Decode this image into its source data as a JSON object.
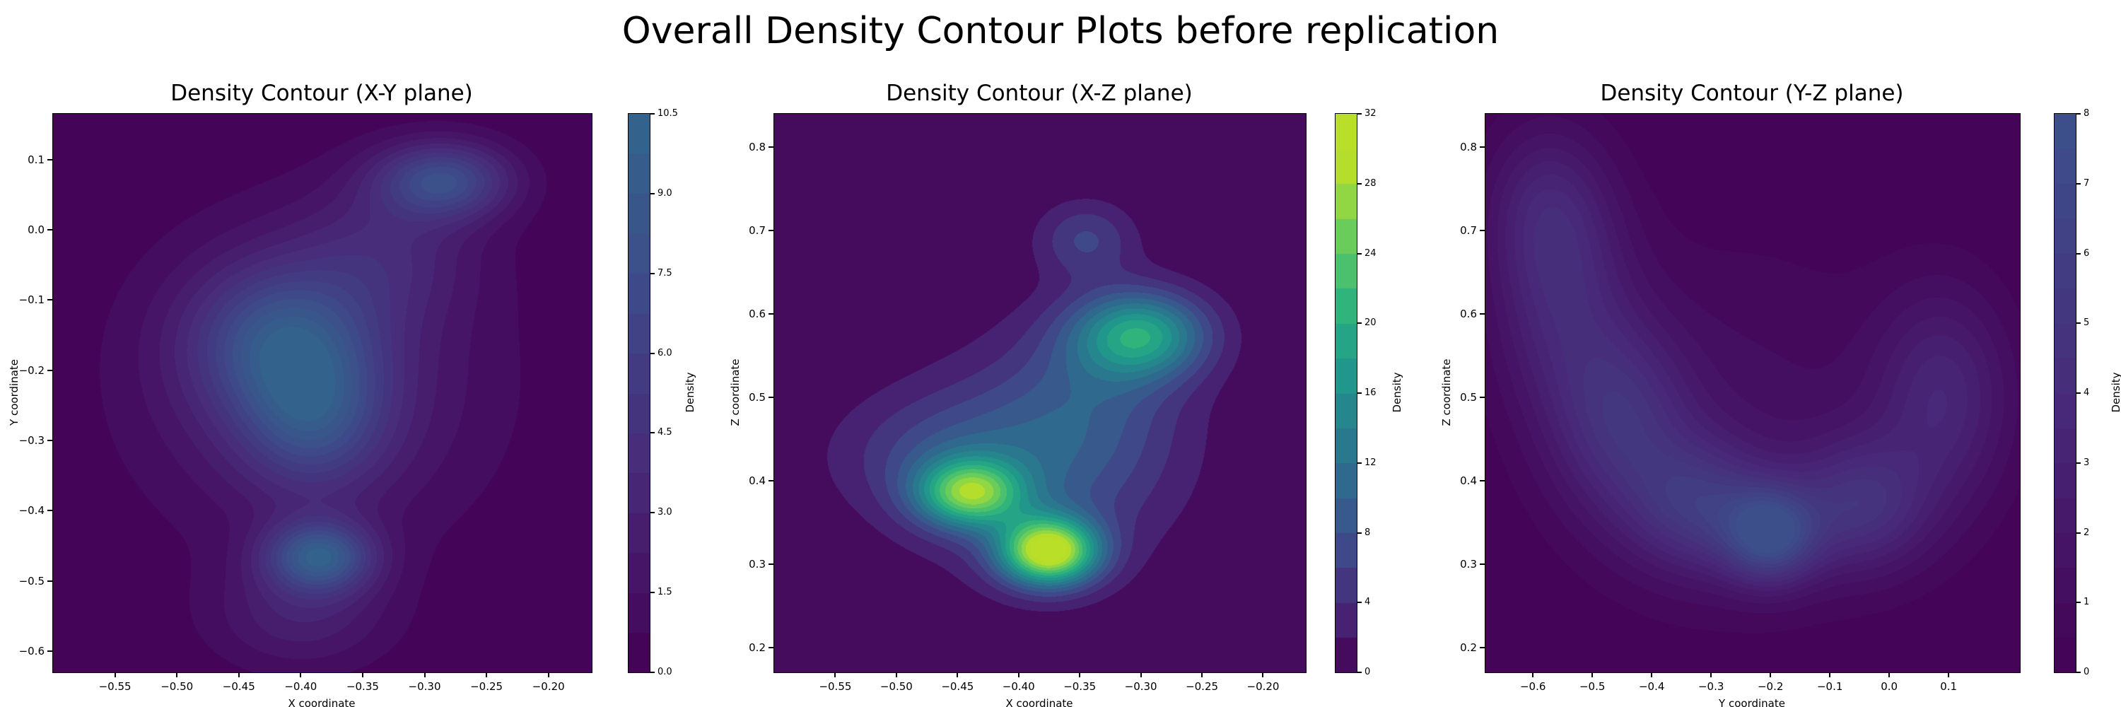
{
  "figure": {
    "title": "Overall Density Contour Plots before replication",
    "background_color": "#ffffff",
    "colormap": "viridis",
    "shared_color_scale_max": 36
  },
  "chart_data": [
    {
      "type": "contour",
      "plane": "X-Y",
      "title": "Density Contour (X-Y plane)",
      "xlabel": "X coordinate",
      "ylabel": "Y coordinate",
      "colorbar_label": "Density",
      "colormap": "viridis",
      "grid": false,
      "xlim": [
        -0.6,
        -0.165
      ],
      "ylim": [
        -0.63,
        0.165
      ],
      "max_density": 10.5,
      "level_step": 0.75,
      "xticks": [
        {
          "v": -0.55,
          "label": "−0.55"
        },
        {
          "v": -0.5,
          "label": "−0.50"
        },
        {
          "v": -0.45,
          "label": "−0.45"
        },
        {
          "v": -0.4,
          "label": "−0.40"
        },
        {
          "v": -0.35,
          "label": "−0.35"
        },
        {
          "v": -0.3,
          "label": "−0.30"
        },
        {
          "v": -0.25,
          "label": "−0.25"
        },
        {
          "v": -0.2,
          "label": "−0.20"
        }
      ],
      "yticks": [
        {
          "v": 0.1,
          "label": "0.1"
        },
        {
          "v": 0.0,
          "label": "0.0"
        },
        {
          "v": -0.1,
          "label": "−0.1"
        },
        {
          "v": -0.2,
          "label": "−0.2"
        },
        {
          "v": -0.3,
          "label": "−0.3"
        },
        {
          "v": -0.4,
          "label": "−0.4"
        },
        {
          "v": -0.5,
          "label": "−0.5"
        },
        {
          "v": -0.6,
          "label": "−0.6"
        }
      ],
      "colorbar_ticks": [
        {
          "v": 0,
          "label": "0.0"
        },
        {
          "v": 1.5,
          "label": "1.5"
        },
        {
          "v": 3,
          "label": "3.0"
        },
        {
          "v": 4.5,
          "label": "4.5"
        },
        {
          "v": 6,
          "label": "6.0"
        },
        {
          "v": 7.5,
          "label": "7.5"
        },
        {
          "v": 9,
          "label": "9.0"
        },
        {
          "v": 10.5,
          "label": "10.5"
        }
      ],
      "density_peaks": [
        {
          "x": -0.415,
          "y": -0.16,
          "sx": 0.05,
          "sy": 0.075,
          "a": 6.5
        },
        {
          "x": -0.39,
          "y": -0.27,
          "sx": 0.04,
          "sy": 0.07,
          "a": 5.0
        },
        {
          "x": -0.385,
          "y": -0.465,
          "sx": 0.03,
          "sy": 0.035,
          "a": 8.5
        },
        {
          "x": -0.285,
          "y": 0.07,
          "sx": 0.038,
          "sy": 0.038,
          "a": 7.0
        },
        {
          "x": -0.39,
          "y": -0.22,
          "sx": 0.1,
          "sy": 0.16,
          "a": 3.0
        },
        {
          "x": -0.33,
          "y": -0.03,
          "sx": 0.05,
          "sy": 0.07,
          "a": 2.5
        },
        {
          "x": -0.4,
          "y": -0.55,
          "sx": 0.05,
          "sy": 0.055,
          "a": 2.5
        }
      ]
    },
    {
      "type": "contour",
      "plane": "X-Z",
      "title": "Density Contour (X-Z plane)",
      "xlabel": "X coordinate",
      "ylabel": "Z coordinate",
      "colorbar_label": "Density",
      "colormap": "viridis",
      "grid": false,
      "xlim": [
        -0.6,
        -0.165
      ],
      "ylim": [
        0.17,
        0.84
      ],
      "max_density": 32,
      "level_step": 2,
      "xticks": [
        {
          "v": -0.55,
          "label": "−0.55"
        },
        {
          "v": -0.5,
          "label": "−0.50"
        },
        {
          "v": -0.45,
          "label": "−0.45"
        },
        {
          "v": -0.4,
          "label": "−0.40"
        },
        {
          "v": -0.35,
          "label": "−0.35"
        },
        {
          "v": -0.3,
          "label": "−0.30"
        },
        {
          "v": -0.25,
          "label": "−0.25"
        },
        {
          "v": -0.2,
          "label": "−0.20"
        }
      ],
      "yticks": [
        {
          "v": 0.8,
          "label": "0.8"
        },
        {
          "v": 0.7,
          "label": "0.7"
        },
        {
          "v": 0.6,
          "label": "0.6"
        },
        {
          "v": 0.5,
          "label": "0.5"
        },
        {
          "v": 0.4,
          "label": "0.4"
        },
        {
          "v": 0.3,
          "label": "0.3"
        },
        {
          "v": 0.2,
          "label": "0.2"
        }
      ],
      "colorbar_ticks": [
        {
          "v": 0,
          "label": "0"
        },
        {
          "v": 4,
          "label": "4"
        },
        {
          "v": 8,
          "label": "8"
        },
        {
          "v": 12,
          "label": "12"
        },
        {
          "v": 16,
          "label": "16"
        },
        {
          "v": 20,
          "label": "20"
        },
        {
          "v": 24,
          "label": "24"
        },
        {
          "v": 28,
          "label": "28"
        },
        {
          "v": 32,
          "label": "32"
        }
      ],
      "density_peaks": [
        {
          "x": -0.44,
          "y": 0.385,
          "sx": 0.03,
          "sy": 0.028,
          "a": 21
        },
        {
          "x": -0.375,
          "y": 0.315,
          "sx": 0.028,
          "sy": 0.028,
          "a": 30
        },
        {
          "x": -0.3,
          "y": 0.575,
          "sx": 0.038,
          "sy": 0.036,
          "a": 17
        },
        {
          "x": -0.385,
          "y": 0.42,
          "sx": 0.075,
          "sy": 0.085,
          "a": 8
        },
        {
          "x": -0.335,
          "y": 0.52,
          "sx": 0.05,
          "sy": 0.07,
          "a": 5
        },
        {
          "x": -0.345,
          "y": 0.69,
          "sx": 0.028,
          "sy": 0.032,
          "a": 6
        },
        {
          "x": -0.47,
          "y": 0.43,
          "sx": 0.06,
          "sy": 0.05,
          "a": 4
        }
      ]
    },
    {
      "type": "contour",
      "plane": "Y-Z",
      "title": "Density Contour (Y-Z plane)",
      "xlabel": "Y coordinate",
      "ylabel": "Z coordinate",
      "colorbar_label": "Density",
      "colormap": "viridis",
      "grid": false,
      "xlim": [
        -0.68,
        0.22
      ],
      "ylim": [
        0.17,
        0.84
      ],
      "max_density": 8,
      "level_step": 0.5,
      "xticks": [
        {
          "v": -0.6,
          "label": "−0.6"
        },
        {
          "v": -0.5,
          "label": "−0.5"
        },
        {
          "v": -0.4,
          "label": "−0.4"
        },
        {
          "v": -0.3,
          "label": "−0.3"
        },
        {
          "v": -0.2,
          "label": "−0.2"
        },
        {
          "v": -0.1,
          "label": "−0.1"
        },
        {
          "v": 0.0,
          "label": "0.0"
        },
        {
          "v": 0.1,
          "label": "0.1"
        }
      ],
      "yticks": [
        {
          "v": 0.8,
          "label": "0.8"
        },
        {
          "v": 0.7,
          "label": "0.7"
        },
        {
          "v": 0.6,
          "label": "0.6"
        },
        {
          "v": 0.5,
          "label": "0.5"
        },
        {
          "v": 0.4,
          "label": "0.4"
        },
        {
          "v": 0.3,
          "label": "0.3"
        },
        {
          "v": 0.2,
          "label": "0.2"
        }
      ],
      "colorbar_ticks": [
        {
          "v": 0,
          "label": "0"
        },
        {
          "v": 1,
          "label": "1"
        },
        {
          "v": 2,
          "label": "2"
        },
        {
          "v": 3,
          "label": "3"
        },
        {
          "v": 4,
          "label": "4"
        },
        {
          "v": 5,
          "label": "5"
        },
        {
          "v": 6,
          "label": "6"
        },
        {
          "v": 7,
          "label": "7"
        },
        {
          "v": 8,
          "label": "8"
        }
      ],
      "density_peaks": [
        {
          "x": -0.55,
          "y": 0.62,
          "sx": 0.08,
          "sy": 0.1,
          "a": 3.2
        },
        {
          "x": -0.45,
          "y": 0.47,
          "sx": 0.08,
          "sy": 0.08,
          "a": 3.8
        },
        {
          "x": -0.32,
          "y": 0.37,
          "sx": 0.08,
          "sy": 0.055,
          "a": 4.2
        },
        {
          "x": -0.2,
          "y": 0.335,
          "sx": 0.055,
          "sy": 0.04,
          "a": 6.5
        },
        {
          "x": -0.05,
          "y": 0.37,
          "sx": 0.08,
          "sy": 0.055,
          "a": 4.0
        },
        {
          "x": 0.09,
          "y": 0.5,
          "sx": 0.08,
          "sy": 0.09,
          "a": 3.2
        },
        {
          "x": -0.58,
          "y": 0.73,
          "sx": 0.07,
          "sy": 0.07,
          "a": 2.2
        },
        {
          "x": -0.25,
          "y": 0.46,
          "sx": 0.2,
          "sy": 0.16,
          "a": 1.2
        }
      ]
    }
  ]
}
